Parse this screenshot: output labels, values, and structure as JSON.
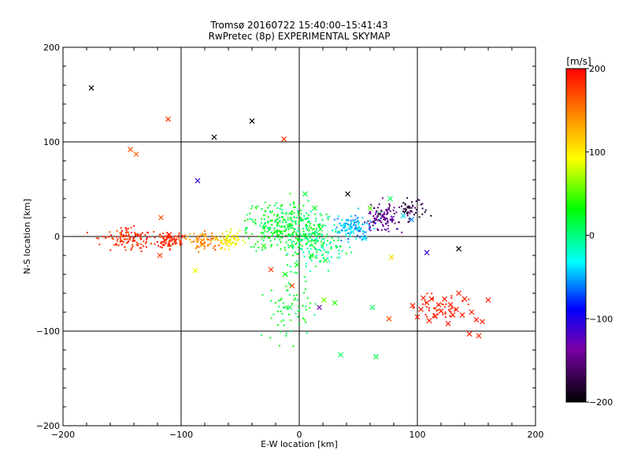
{
  "chart_data": {
    "type": "scatter",
    "title": "Tromsø 20160722 15:40:00–15:41:43",
    "subtitle": "RwPretec (8p) EXPERIMENTAL SKYMAP",
    "xlabel": "E-W location [km]",
    "ylabel": "N-S location [km]",
    "xlim": [
      -200,
      200
    ],
    "ylim": [
      -200,
      200
    ],
    "xticks": [
      "−200",
      "−100",
      "0",
      "100",
      "200"
    ],
    "yticks": [
      "−200",
      "−100",
      "0",
      "100",
      "200"
    ],
    "grid": true,
    "gridlines_x": [
      -100,
      0,
      100
    ],
    "gridlines_y": [
      -100,
      0,
      100
    ],
    "colorbar": {
      "label": "[m/s]",
      "range": [
        -200,
        200
      ],
      "ticks": [
        "200",
        "100",
        "0",
        "−100",
        "−200"
      ],
      "colormap": [
        "#000000",
        "#7a00a8",
        "#0000ff",
        "#00ffff",
        "#00ff00",
        "#ffff00",
        "#ff8000",
        "#ff0000"
      ]
    },
    "series": [
      {
        "marker": "x",
        "color_by": "velocity_mps",
        "points": [
          [
            -176,
            157,
            -200
          ],
          [
            -111,
            124,
            180
          ],
          [
            -138,
            87,
            160
          ],
          [
            -143,
            92,
            170
          ],
          [
            -72,
            105,
            -200
          ],
          [
            -86,
            59,
            -110
          ],
          [
            -13,
            103,
            180
          ],
          [
            -40,
            122,
            -200
          ],
          [
            41,
            45,
            -200
          ],
          [
            135,
            -13,
            -200
          ],
          [
            108,
            -17,
            -110
          ],
          [
            -117,
            20,
            170
          ],
          [
            -88,
            -36,
            90
          ],
          [
            -118,
            -20,
            180
          ],
          [
            -105,
            -5,
            180
          ],
          [
            -110,
            2,
            190
          ],
          [
            -114,
            -4,
            180
          ],
          [
            -98,
            0,
            170
          ],
          [
            -82,
            -8,
            150
          ],
          [
            -70,
            -2,
            120
          ],
          [
            -60,
            -6,
            110
          ],
          [
            -24,
            -35,
            180
          ],
          [
            -12,
            -40,
            30
          ],
          [
            -8,
            -75,
            10
          ],
          [
            17,
            -75,
            -130
          ],
          [
            21,
            -67,
            60
          ],
          [
            30,
            -70,
            40
          ],
          [
            35,
            -125,
            10
          ],
          [
            65,
            -127,
            10
          ],
          [
            62,
            -75,
            10
          ],
          [
            76,
            -87,
            170
          ],
          [
            78,
            -22,
            110
          ],
          [
            -6,
            -52,
            170
          ],
          [
            -2,
            -30,
            30
          ],
          [
            10,
            -20,
            20
          ],
          [
            22,
            -25,
            20
          ],
          [
            60,
            30,
            50
          ],
          [
            68,
            24,
            20
          ],
          [
            77,
            40,
            10
          ],
          [
            88,
            22,
            -40
          ],
          [
            95,
            18,
            -60
          ],
          [
            45,
            5,
            -30
          ],
          [
            55,
            -2,
            -30
          ],
          [
            5,
            45,
            20
          ],
          [
            13,
            30,
            20
          ],
          [
            -20,
            5,
            30
          ],
          [
            -30,
            -10,
            40
          ],
          [
            18,
            8,
            20
          ],
          [
            105,
            -65,
            190
          ],
          [
            108,
            -70,
            190
          ],
          [
            112,
            -66,
            190
          ],
          [
            118,
            -72,
            190
          ],
          [
            123,
            -66,
            190
          ],
          [
            128,
            -72,
            190
          ],
          [
            135,
            -60,
            190
          ],
          [
            140,
            -66,
            190
          ],
          [
            146,
            -80,
            190
          ],
          [
            150,
            -88,
            190
          ],
          [
            155,
            -90,
            190
          ],
          [
            160,
            -67,
            190
          ],
          [
            152,
            -105,
            190
          ],
          [
            144,
            -103,
            190
          ],
          [
            133,
            -77,
            190
          ],
          [
            138,
            -83,
            190
          ],
          [
            120,
            -79,
            190
          ],
          [
            115,
            -84,
            190
          ],
          [
            103,
            -77,
            190
          ],
          [
            96,
            -73,
            190
          ],
          [
            100,
            -85,
            190
          ],
          [
            130,
            -83,
            190
          ],
          [
            126,
            -92,
            190
          ],
          [
            110,
            -89,
            190
          ]
        ]
      },
      {
        "marker": "dot",
        "color_by": "velocity_mps",
        "clusters": [
          {
            "center": [
              -145,
              -2
            ],
            "spread": [
              18,
              10
            ],
            "count": 120,
            "velocity": [
              165,
              195
            ]
          },
          {
            "center": [
              -108,
              -5
            ],
            "spread": [
              10,
              7
            ],
            "count": 80,
            "velocity": [
              170,
              195
            ]
          },
          {
            "center": [
              -80,
              -6
            ],
            "spread": [
              12,
              8
            ],
            "count": 70,
            "velocity": [
              120,
              170
            ]
          },
          {
            "center": [
              -60,
              -4
            ],
            "spread": [
              10,
              8
            ],
            "count": 60,
            "velocity": [
              80,
              120
            ]
          },
          {
            "center": [
              -10,
              10
            ],
            "spread": [
              28,
              20
            ],
            "count": 320,
            "velocity": [
              0,
              40
            ]
          },
          {
            "center": [
              15,
              -5
            ],
            "spread": [
              20,
              22
            ],
            "count": 150,
            "velocity": [
              -20,
              30
            ]
          },
          {
            "center": [
              45,
              8
            ],
            "spread": [
              14,
              12
            ],
            "count": 120,
            "velocity": [
              -70,
              -20
            ]
          },
          {
            "center": [
              72,
              20
            ],
            "spread": [
              12,
              12
            ],
            "count": 110,
            "velocity": [
              -170,
              -120
            ]
          },
          {
            "center": [
              95,
              28
            ],
            "spread": [
              10,
              10
            ],
            "count": 50,
            "velocity": [
              -195,
              -150
            ]
          },
          {
            "center": [
              -5,
              -75
            ],
            "spread": [
              18,
              30
            ],
            "count": 70,
            "velocity": [
              0,
              40
            ]
          },
          {
            "center": [
              120,
              -75
            ],
            "spread": [
              16,
              10
            ],
            "count": 45,
            "velocity": [
              175,
              195
            ]
          }
        ]
      }
    ]
  }
}
